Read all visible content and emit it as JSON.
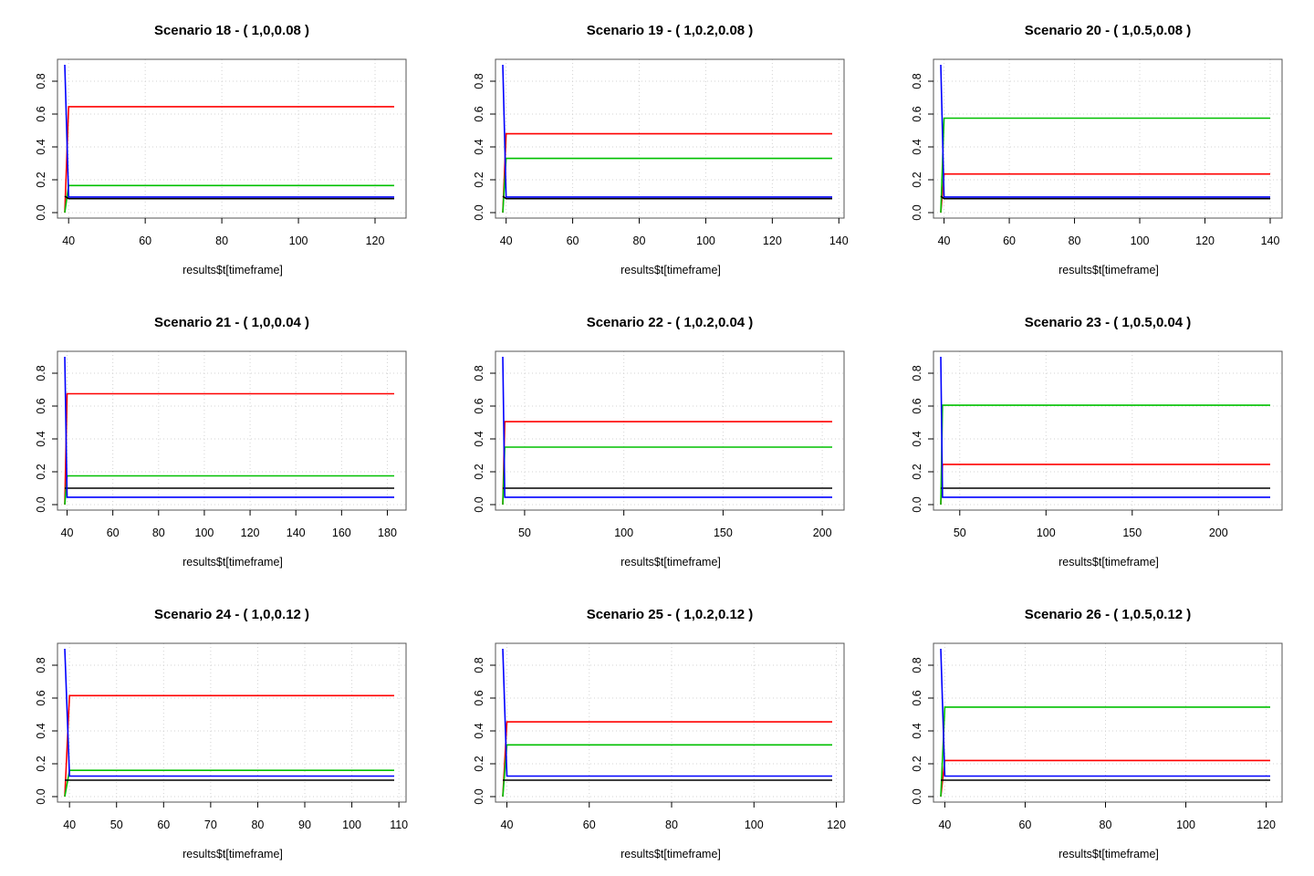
{
  "colors": {
    "red": "#ff0000",
    "green": "#00c000",
    "blue": "#0000ff",
    "black": "#000000",
    "grid": "#d3d3d3"
  },
  "chart_data": [
    {
      "type": "line",
      "title": "Scenario 18 - ( 1,0,0.08 )",
      "xlabel": "results$t[timeframe]",
      "ylabel": "",
      "xlim": [
        39,
        125
      ],
      "ylim": [
        0,
        0.9
      ],
      "xticks": [
        40,
        60,
        80,
        100,
        120
      ],
      "xtick_labels": [
        "40",
        "60",
        "80",
        "100",
        "120"
      ],
      "yticks": [
        0,
        0.2,
        0.4,
        0.6,
        0.8
      ],
      "ytick_labels": [
        "0.0",
        "0.2",
        "0.4",
        "0.6",
        "0.8"
      ],
      "grid": true,
      "series": [
        {
          "color": "red",
          "x": [
            39,
            40,
            125
          ],
          "y": [
            0,
            0.645,
            0.645
          ]
        },
        {
          "color": "green",
          "x": [
            39,
            40,
            125
          ],
          "y": [
            0,
            0.165,
            0.165
          ]
        },
        {
          "color": "blue",
          "x": [
            39,
            40,
            125
          ],
          "y": [
            0.9,
            0.095,
            0.095
          ]
        },
        {
          "color": "black",
          "x": [
            39,
            40,
            125
          ],
          "y": [
            0.1,
            0.085,
            0.085
          ]
        }
      ]
    },
    {
      "type": "line",
      "title": "Scenario 19 - ( 1,0.2,0.08 )",
      "xlabel": "results$t[timeframe]",
      "ylabel": "",
      "xlim": [
        39,
        138
      ],
      "ylim": [
        0,
        0.9
      ],
      "xticks": [
        40,
        60,
        80,
        100,
        120,
        140
      ],
      "xtick_labels": [
        "40",
        "60",
        "80",
        "100",
        "120",
        "140"
      ],
      "yticks": [
        0,
        0.2,
        0.4,
        0.6,
        0.8
      ],
      "ytick_labels": [
        "0.0",
        "0.2",
        "0.4",
        "0.6",
        "0.8"
      ],
      "grid": true,
      "series": [
        {
          "color": "red",
          "x": [
            39,
            40,
            138
          ],
          "y": [
            0,
            0.48,
            0.48
          ]
        },
        {
          "color": "green",
          "x": [
            39,
            40,
            138
          ],
          "y": [
            0,
            0.33,
            0.33
          ]
        },
        {
          "color": "blue",
          "x": [
            39,
            40,
            138
          ],
          "y": [
            0.9,
            0.095,
            0.095
          ]
        },
        {
          "color": "black",
          "x": [
            39,
            40,
            138
          ],
          "y": [
            0.1,
            0.085,
            0.085
          ]
        }
      ]
    },
    {
      "type": "line",
      "title": "Scenario 20 - ( 1,0.5,0.08 )",
      "xlabel": "results$t[timeframe]",
      "ylabel": "",
      "xlim": [
        39,
        140
      ],
      "ylim": [
        0,
        0.9
      ],
      "xticks": [
        40,
        60,
        80,
        100,
        120,
        140
      ],
      "xtick_labels": [
        "40",
        "60",
        "80",
        "100",
        "120",
        "140"
      ],
      "yticks": [
        0,
        0.2,
        0.4,
        0.6,
        0.8
      ],
      "ytick_labels": [
        "0.0",
        "0.2",
        "0.4",
        "0.6",
        "0.8"
      ],
      "grid": true,
      "series": [
        {
          "color": "red",
          "x": [
            39,
            40,
            140
          ],
          "y": [
            0,
            0.235,
            0.235
          ]
        },
        {
          "color": "green",
          "x": [
            39,
            40,
            140
          ],
          "y": [
            0,
            0.575,
            0.575
          ]
        },
        {
          "color": "blue",
          "x": [
            39,
            40,
            140
          ],
          "y": [
            0.9,
            0.095,
            0.095
          ]
        },
        {
          "color": "black",
          "x": [
            39,
            40,
            140
          ],
          "y": [
            0.1,
            0.085,
            0.085
          ]
        }
      ]
    },
    {
      "type": "line",
      "title": "Scenario 21 - ( 1,0,0.04 )",
      "xlabel": "results$t[timeframe]",
      "ylabel": "",
      "xlim": [
        39,
        183
      ],
      "ylim": [
        0,
        0.9
      ],
      "xticks": [
        40,
        60,
        80,
        100,
        120,
        140,
        160,
        180
      ],
      "xtick_labels": [
        "40",
        "60",
        "80",
        "100",
        "120",
        "140",
        "160",
        "180"
      ],
      "yticks": [
        0,
        0.2,
        0.4,
        0.6,
        0.8
      ],
      "ytick_labels": [
        "0.0",
        "0.2",
        "0.4",
        "0.6",
        "0.8"
      ],
      "grid": true,
      "series": [
        {
          "color": "red",
          "x": [
            39,
            40,
            183
          ],
          "y": [
            0,
            0.675,
            0.675
          ]
        },
        {
          "color": "green",
          "x": [
            39,
            40,
            183
          ],
          "y": [
            0,
            0.175,
            0.175
          ]
        },
        {
          "color": "black",
          "x": [
            39,
            40,
            183
          ],
          "y": [
            0.1,
            0.1,
            0.1
          ]
        },
        {
          "color": "blue",
          "x": [
            39,
            40,
            183
          ],
          "y": [
            0.9,
            0.045,
            0.045
          ]
        }
      ]
    },
    {
      "type": "line",
      "title": "Scenario 22 - ( 1,0.2,0.04 )",
      "xlabel": "results$t[timeframe]",
      "ylabel": "",
      "xlim": [
        39,
        205
      ],
      "ylim": [
        0,
        0.9
      ],
      "xticks": [
        50,
        100,
        150,
        200
      ],
      "xtick_labels": [
        "50",
        "100",
        "150",
        "200"
      ],
      "yticks": [
        0,
        0.2,
        0.4,
        0.6,
        0.8
      ],
      "ytick_labels": [
        "0.0",
        "0.2",
        "0.4",
        "0.6",
        "0.8"
      ],
      "grid": true,
      "series": [
        {
          "color": "red",
          "x": [
            39,
            40,
            205
          ],
          "y": [
            0,
            0.505,
            0.505
          ]
        },
        {
          "color": "green",
          "x": [
            39,
            40,
            205
          ],
          "y": [
            0,
            0.35,
            0.35
          ]
        },
        {
          "color": "black",
          "x": [
            39,
            40,
            205
          ],
          "y": [
            0.1,
            0.1,
            0.1
          ]
        },
        {
          "color": "blue",
          "x": [
            39,
            40,
            205
          ],
          "y": [
            0.9,
            0.045,
            0.045
          ]
        }
      ]
    },
    {
      "type": "line",
      "title": "Scenario 23 - ( 1,0.5,0.04 )",
      "xlabel": "results$t[timeframe]",
      "ylabel": "",
      "xlim": [
        39,
        230
      ],
      "ylim": [
        0,
        0.9
      ],
      "xticks": [
        50,
        100,
        150,
        200
      ],
      "xtick_labels": [
        "50",
        "100",
        "150",
        "200"
      ],
      "yticks": [
        0,
        0.2,
        0.4,
        0.6,
        0.8
      ],
      "ytick_labels": [
        "0.0",
        "0.2",
        "0.4",
        "0.6",
        "0.8"
      ],
      "grid": true,
      "series": [
        {
          "color": "red",
          "x": [
            39,
            40,
            230
          ],
          "y": [
            0,
            0.245,
            0.245
          ]
        },
        {
          "color": "green",
          "x": [
            39,
            40,
            230
          ],
          "y": [
            0,
            0.605,
            0.605
          ]
        },
        {
          "color": "black",
          "x": [
            39,
            40,
            230
          ],
          "y": [
            0.1,
            0.1,
            0.1
          ]
        },
        {
          "color": "blue",
          "x": [
            39,
            40,
            230
          ],
          "y": [
            0.9,
            0.045,
            0.045
          ]
        }
      ]
    },
    {
      "type": "line",
      "title": "Scenario 24 - ( 1,0,0.12 )",
      "xlabel": "results$t[timeframe]",
      "ylabel": "",
      "xlim": [
        39,
        109
      ],
      "ylim": [
        0,
        0.9
      ],
      "xticks": [
        40,
        50,
        60,
        70,
        80,
        90,
        100,
        110
      ],
      "xtick_labels": [
        "40",
        "50",
        "60",
        "70",
        "80",
        "90",
        "100",
        "110"
      ],
      "yticks": [
        0,
        0.2,
        0.4,
        0.6,
        0.8
      ],
      "ytick_labels": [
        "0.0",
        "0.2",
        "0.4",
        "0.6",
        "0.8"
      ],
      "grid": true,
      "series": [
        {
          "color": "red",
          "x": [
            39,
            40,
            109
          ],
          "y": [
            0,
            0.615,
            0.615
          ]
        },
        {
          "color": "green",
          "x": [
            39,
            40,
            109
          ],
          "y": [
            0,
            0.16,
            0.16
          ]
        },
        {
          "color": "blue",
          "x": [
            39,
            40,
            109
          ],
          "y": [
            0.9,
            0.125,
            0.125
          ]
        },
        {
          "color": "black",
          "x": [
            39,
            40,
            109
          ],
          "y": [
            0.1,
            0.1,
            0.1
          ]
        }
      ]
    },
    {
      "type": "line",
      "title": "Scenario 25 - ( 1,0.2,0.12 )",
      "xlabel": "results$t[timeframe]",
      "ylabel": "",
      "xlim": [
        39,
        119
      ],
      "ylim": [
        0,
        0.9
      ],
      "xticks": [
        40,
        60,
        80,
        100,
        120
      ],
      "xtick_labels": [
        "40",
        "60",
        "80",
        "100",
        "120"
      ],
      "yticks": [
        0,
        0.2,
        0.4,
        0.6,
        0.8
      ],
      "ytick_labels": [
        "0.0",
        "0.2",
        "0.4",
        "0.6",
        "0.8"
      ],
      "grid": true,
      "series": [
        {
          "color": "red",
          "x": [
            39,
            40,
            119
          ],
          "y": [
            0,
            0.455,
            0.455
          ]
        },
        {
          "color": "green",
          "x": [
            39,
            40,
            119
          ],
          "y": [
            0,
            0.315,
            0.315
          ]
        },
        {
          "color": "blue",
          "x": [
            39,
            40,
            119
          ],
          "y": [
            0.9,
            0.125,
            0.125
          ]
        },
        {
          "color": "black",
          "x": [
            39,
            40,
            119
          ],
          "y": [
            0.1,
            0.1,
            0.1
          ]
        }
      ]
    },
    {
      "type": "line",
      "title": "Scenario 26 - ( 1,0.5,0.12 )",
      "xlabel": "results$t[timeframe]",
      "ylabel": "",
      "xlim": [
        39,
        121
      ],
      "ylim": [
        0,
        0.9
      ],
      "xticks": [
        40,
        60,
        80,
        100,
        120
      ],
      "xtick_labels": [
        "40",
        "60",
        "80",
        "100",
        "120"
      ],
      "yticks": [
        0,
        0.2,
        0.4,
        0.6,
        0.8
      ],
      "ytick_labels": [
        "0.0",
        "0.2",
        "0.4",
        "0.6",
        "0.8"
      ],
      "grid": true,
      "series": [
        {
          "color": "red",
          "x": [
            39,
            40,
            121
          ],
          "y": [
            0,
            0.22,
            0.22
          ]
        },
        {
          "color": "green",
          "x": [
            39,
            40,
            121
          ],
          "y": [
            0,
            0.545,
            0.545
          ]
        },
        {
          "color": "blue",
          "x": [
            39,
            40,
            121
          ],
          "y": [
            0.9,
            0.125,
            0.125
          ]
        },
        {
          "color": "black",
          "x": [
            39,
            40,
            121
          ],
          "y": [
            0.1,
            0.1,
            0.1
          ]
        }
      ]
    }
  ]
}
